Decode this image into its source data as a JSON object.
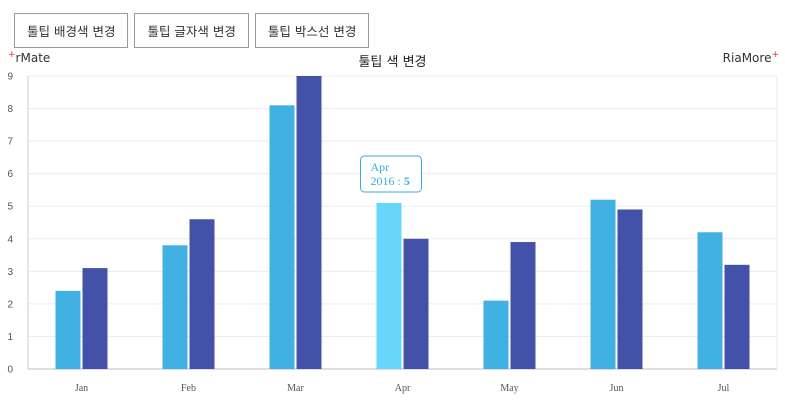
{
  "buttons": {
    "tooltip_bg": "툴팁 배경색 변경",
    "tooltip_font": "툴팁 글자색 변경",
    "tooltip_border": "툴팁 박스선 변경"
  },
  "brand": {
    "left": "rMate",
    "right": "RiaMore",
    "plus_glyph": "+"
  },
  "chart_data": {
    "type": "bar",
    "title": "툴팁 색 변경",
    "categories": [
      "Jan",
      "Feb",
      "Mar",
      "Apr",
      "May",
      "Jun",
      "Jul"
    ],
    "series": [
      {
        "color": "#41b1e4",
        "values": [
          2.4,
          3.8,
          8.1,
          5.1,
          2.1,
          5.2,
          4.2
        ]
      },
      {
        "name": "2016",
        "color": "#4451a8",
        "values": [
          3.1,
          4.6,
          9.0,
          4.0,
          3.9,
          4.9,
          3.2
        ]
      }
    ],
    "ylim": [
      0,
      9
    ],
    "yticks": [
      "0",
      "1",
      "2",
      "3",
      "4",
      "5",
      "6",
      "7",
      "8",
      "9"
    ],
    "grid": true,
    "highlight": {
      "series": 0,
      "category": 3,
      "color": "#66d6fc"
    },
    "tooltip": {
      "line1": "Apr",
      "line2_prefix": "2016 : ",
      "line2_value": "5",
      "border_color": "#3aaede"
    }
  }
}
